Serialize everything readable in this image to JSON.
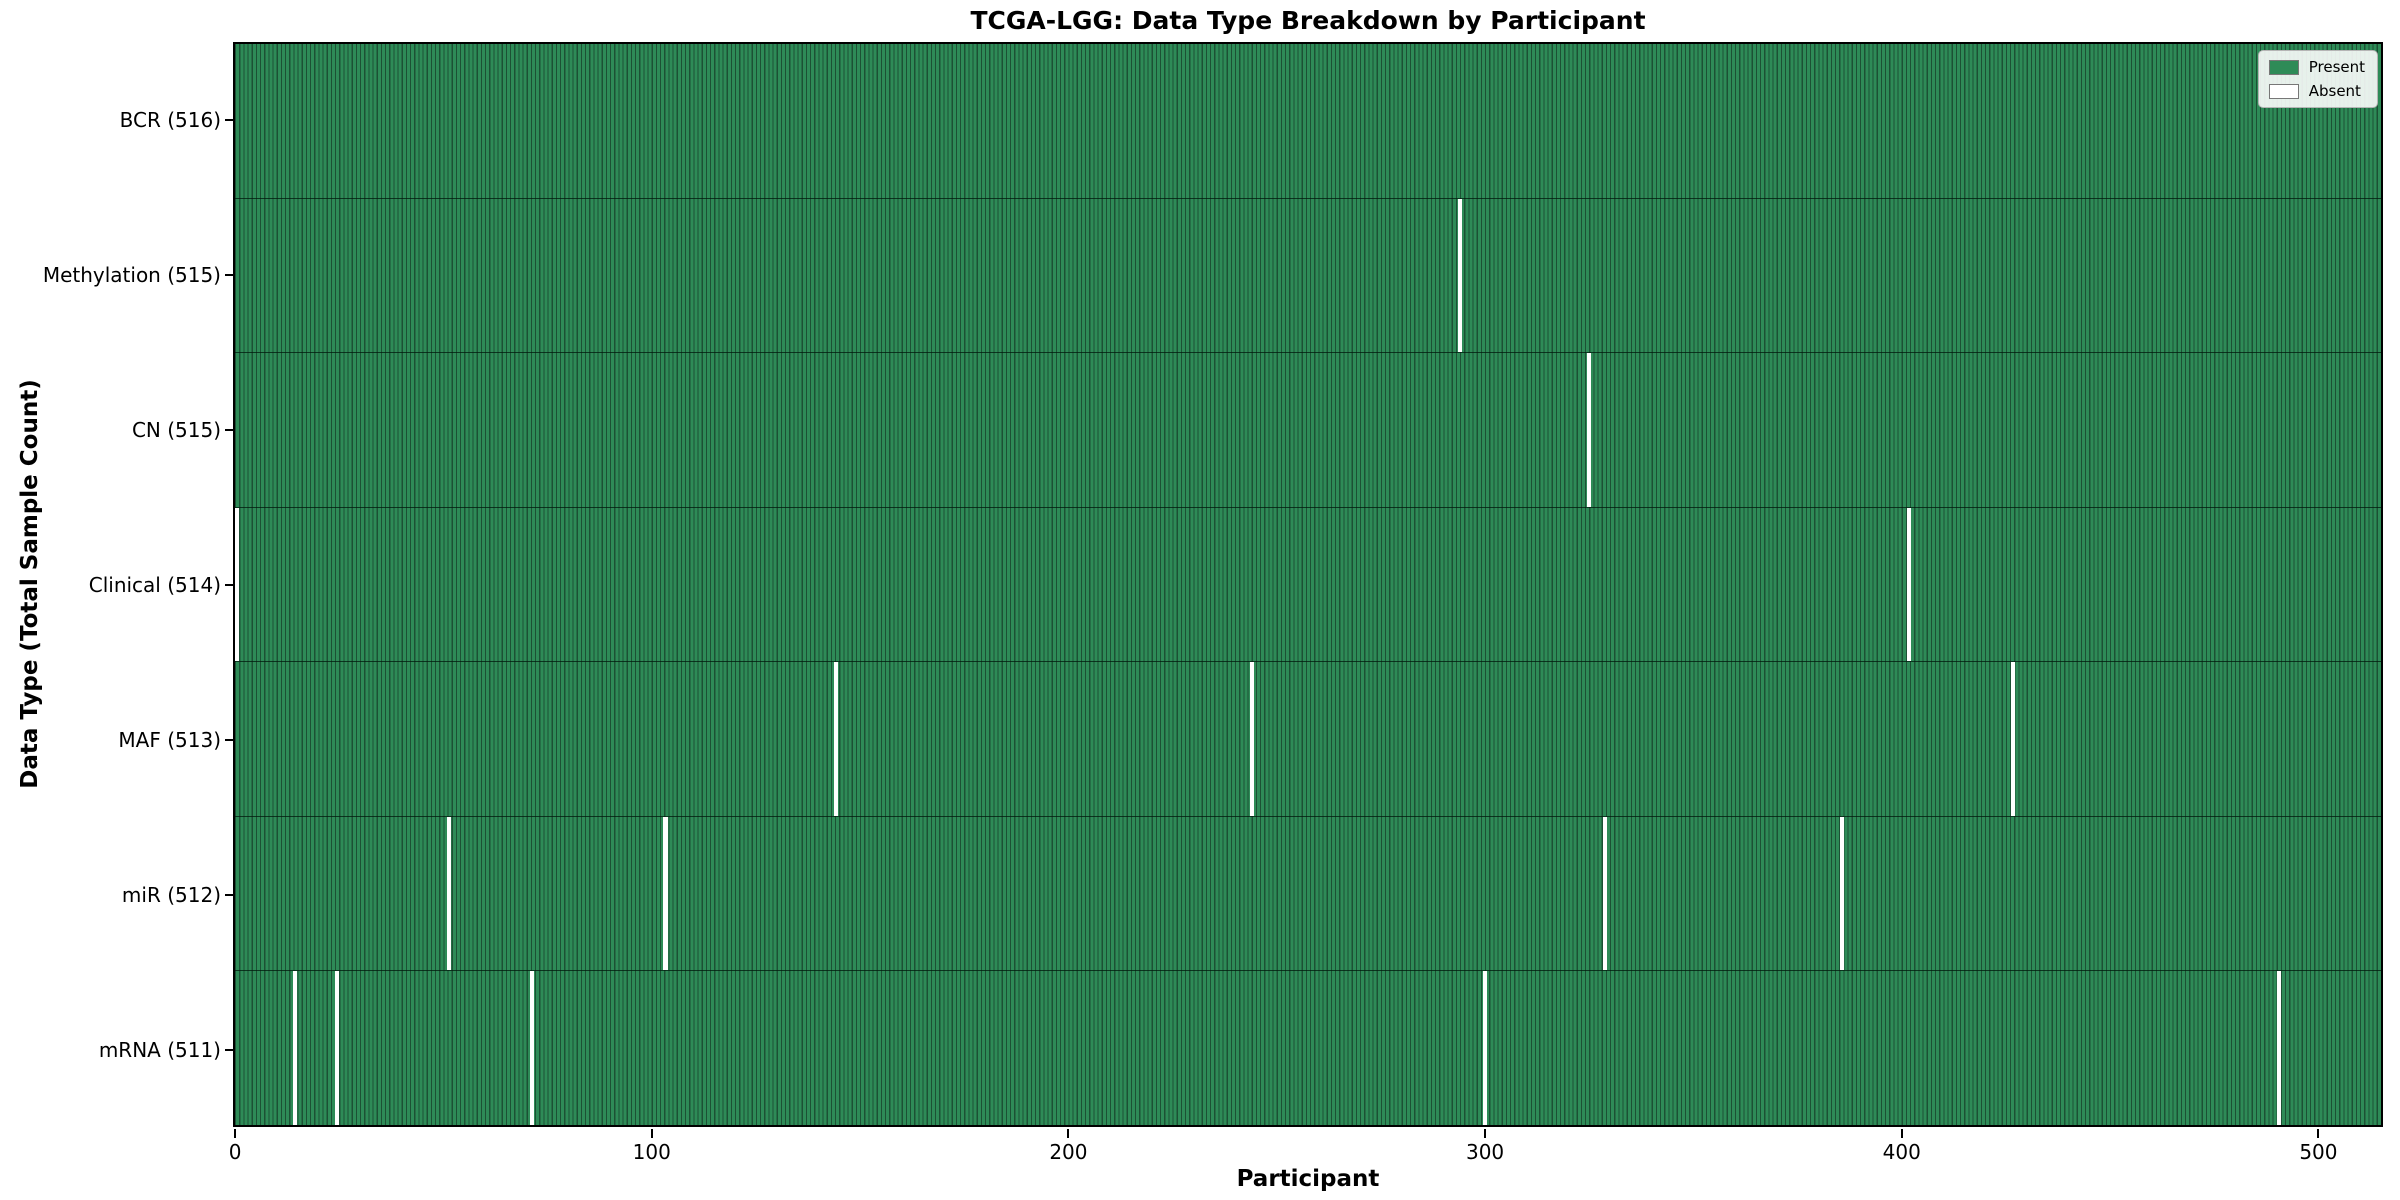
{
  "chart_data": {
    "type": "heatmap",
    "title": "TCGA-LGG: Data Type Breakdown by Participant",
    "xlabel": "Participant",
    "ylabel": "Data Type (Total Sample Count)",
    "n_participants": 516,
    "x_ticks": [
      0,
      100,
      200,
      300,
      400,
      500
    ],
    "xlim": [
      -0.5,
      515.5
    ],
    "grid": false,
    "legend_position": "upper right",
    "legend": [
      {
        "label": "Present",
        "color": "#2e8b57"
      },
      {
        "label": "Absent",
        "color": "#ffffff"
      }
    ],
    "colors": {
      "present": "#2e8b57",
      "absent": "#ffffff",
      "bar_edge": "#1c5134"
    },
    "rows": [
      {
        "label": "BCR (516)",
        "present_count": 516,
        "absent_participants": []
      },
      {
        "label": "Methylation (515)",
        "present_count": 515,
        "absent_participants": [
          294
        ]
      },
      {
        "label": "CN (515)",
        "present_count": 515,
        "absent_participants": [
          325
        ]
      },
      {
        "label": "Clinical (514)",
        "present_count": 514,
        "absent_participants": [
          0,
          402
        ]
      },
      {
        "label": "MAF (513)",
        "present_count": 513,
        "absent_participants": [
          144,
          244,
          427
        ]
      },
      {
        "label": "miR (512)",
        "present_count": 512,
        "absent_participants": [
          51,
          103,
          329,
          386
        ]
      },
      {
        "label": "mRNA (511)",
        "present_count": 511,
        "absent_participants": [
          14,
          24,
          71,
          300,
          491
        ]
      }
    ]
  }
}
